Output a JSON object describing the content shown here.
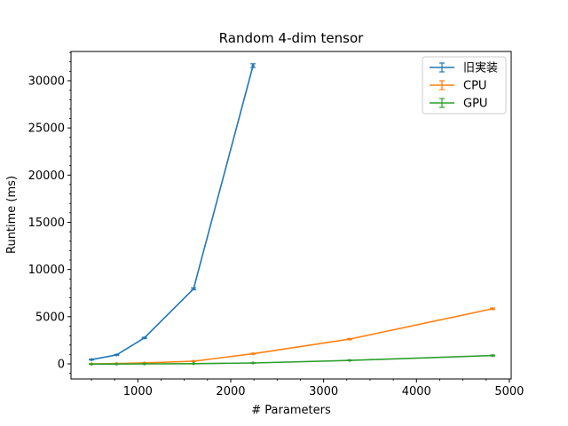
{
  "chart_data": {
    "type": "line",
    "title": "Random 4-dim tensor",
    "xlabel": "# Parameters",
    "ylabel": "Runtime (ms)",
    "xlim": [
      280,
      5020
    ],
    "ylim": [
      -1600,
      33100
    ],
    "xticks": [
      1000,
      2000,
      3000,
      4000,
      5000
    ],
    "yticks": [
      0,
      5000,
      10000,
      15000,
      20000,
      25000,
      30000
    ],
    "grid": false,
    "legend_position": "top-right",
    "error_bars": true,
    "series": [
      {
        "name": "旧実装",
        "color": "#1f77b4",
        "x": [
          500,
          770,
          1070,
          1600,
          2240
        ],
        "y": [
          450,
          950,
          2750,
          7950,
          31600
        ],
        "yerr": [
          30,
          40,
          60,
          100,
          200
        ]
      },
      {
        "name": "CPU",
        "color": "#ff7f0e",
        "x": [
          500,
          770,
          1070,
          1600,
          2240,
          3280,
          4820
        ],
        "y": [
          0,
          30,
          100,
          280,
          1070,
          2620,
          5840
        ],
        "yerr": [
          10,
          10,
          15,
          20,
          40,
          60,
          80
        ]
      },
      {
        "name": "GPU",
        "color": "#2ca02c",
        "x": [
          500,
          770,
          1070,
          1600,
          2240,
          3280,
          4820
        ],
        "y": [
          -30,
          -20,
          0,
          20,
          90,
          370,
          880
        ],
        "yerr": [
          10,
          10,
          10,
          10,
          20,
          30,
          40
        ]
      }
    ]
  }
}
